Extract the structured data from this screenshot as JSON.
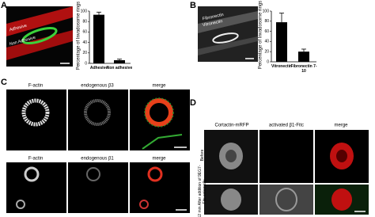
{
  "panel_labels": [
    "A",
    "B",
    "C",
    "D"
  ],
  "panel_a": {
    "image_labels": [
      "Adhesive",
      "Non Adhesive"
    ]
  },
  "panel_b": {
    "image_labels": [
      "Fibronectin",
      "Vitronectin"
    ]
  },
  "panel_c": {
    "rows": [
      {
        "headers": [
          "F-actin",
          "endogenous β3",
          "merge"
        ]
      },
      {
        "headers": [
          "F-actin",
          "endogenous β1",
          "merge"
        ]
      }
    ]
  },
  "panel_d": {
    "headers": [
      "Cortactin-mRFP",
      "activated β1-Fitc",
      "merge"
    ],
    "row_labels": [
      "Before",
      "12 min After addition of 9EG7-Fitc externally"
    ]
  },
  "chart_data": [
    {
      "type": "bar",
      "ylabel": "Percentage of Invadosome rings",
      "categories": [
        "Adhesive",
        "Non adhesive"
      ],
      "values": [
        93,
        6
      ],
      "errors": [
        5,
        2
      ],
      "color": "#000000",
      "ylim": [
        0,
        100
      ],
      "yticks": [
        0,
        20,
        40,
        60,
        80,
        100
      ]
    },
    {
      "type": "bar",
      "ylabel": "Percentage of Invadosome rings",
      "categories": [
        "Vitronectin",
        "Fibronectin 7-10"
      ],
      "values": [
        78,
        20
      ],
      "errors": [
        18,
        5
      ],
      "color": "#000000",
      "ylim": [
        0,
        100
      ],
      "yticks": [
        0,
        20,
        40,
        60,
        80,
        100
      ]
    }
  ]
}
